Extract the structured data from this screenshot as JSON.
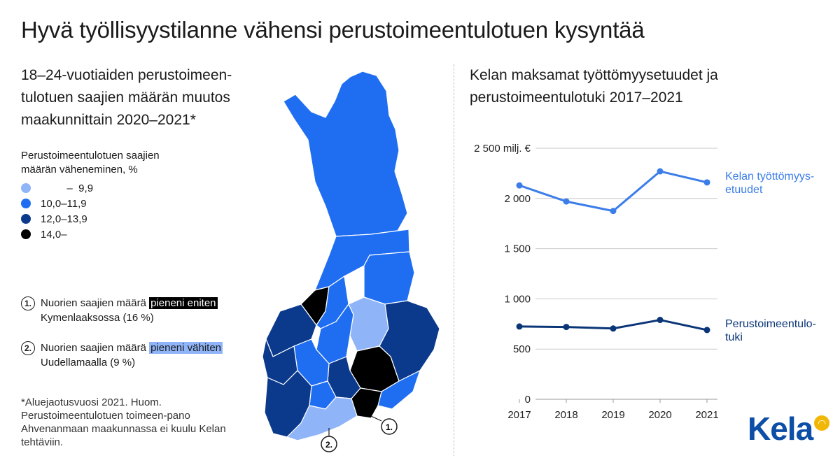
{
  "title": "Hyvä työllisyystilanne vähensi perustoimeentulotuen kysyntää",
  "map": {
    "title": "18–24-vuotiaiden perustoimeen-tulotuen saajien määrän muutos maakunnittain 2020–2021*",
    "legend_title": "Perustoimeentulotuen saajien määrän väheneminen, %",
    "legend": [
      {
        "label": "         –  9,9",
        "color": "#8fb4f7"
      },
      {
        "label": "10,0–11,9",
        "color": "#1f6ef2"
      },
      {
        "label": "12,0–13,9",
        "color": "#0b3a8c"
      },
      {
        "label": "14,0–",
        "color": "#000000"
      }
    ],
    "notes": [
      {
        "num": "1.",
        "prefix": "Nuorien saajien määrä ",
        "highlight": "pieneni eniten",
        "suffix": "Kymenlaaksossa (16 %)"
      },
      {
        "num": "2.",
        "prefix": "Nuorien saajien määrä ",
        "highlight": "pieneni vähiten",
        "suffix": "Uudellamaalla (9 %)"
      }
    ],
    "footnote": "*Aluejaotusvuosi 2021. Huom. Perustoimeentulotuen toimeen-pano Ahvenanmaan maakunnassa ei kuulu Kelan tehtäviin.",
    "callouts": [
      "1.",
      "2."
    ]
  },
  "chart_title": "Kelan maksamat työttömyysetuudet ja perustoimeentulotuki 2017–2021",
  "chart_data": {
    "type": "line",
    "x": [
      "2017",
      "2018",
      "2019",
      "2020",
      "2021"
    ],
    "series": [
      {
        "name": "Kelan työttömyys-etuudet",
        "values": [
          2130,
          1970,
          1875,
          2270,
          2160
        ],
        "color": "#3b7de9"
      },
      {
        "name": "Perustoimeentulo-tuki",
        "values": [
          725,
          720,
          705,
          790,
          690
        ],
        "color": "#0a3577"
      }
    ],
    "yticks": [
      "0",
      "500",
      "1 000",
      "1 500",
      "2 000",
      "2 500 milj. €"
    ],
    "ylim": [
      0,
      2500
    ],
    "grid": true
  },
  "logo": {
    "text": "Kela"
  }
}
